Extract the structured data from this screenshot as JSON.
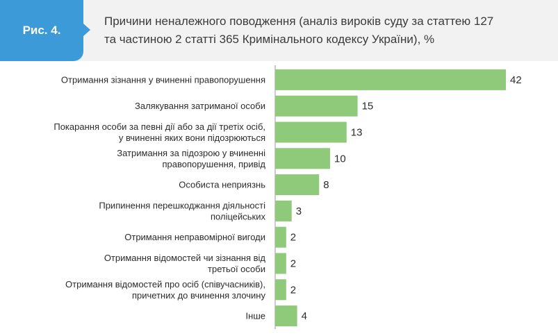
{
  "figure_label": "Рис. 4.",
  "title": "Причини неналежного поводження (аналіз вироків суду за статтею 127\nта частиною 2 статті 365 Кримінального кодексу України), %",
  "colors": {
    "badge": "#3d9ad8",
    "bar": "#8fc97a",
    "header_bg": "#f2f2f2",
    "axis": "#9a9a9a"
  },
  "chart_data": {
    "type": "bar",
    "orientation": "horizontal",
    "title": "Причини неналежного поводження (аналіз вироків суду за статтею 127 та частиною 2 статті 365 Кримінального кодексу України), %",
    "categories": [
      [
        "Отримання зізнання у вчиненні правопорушення"
      ],
      [
        "Залякування затриманої особи"
      ],
      [
        "Покарання особи за певні дії або за дії третіх осіб,",
        "у вчиненні яких вони підозрюються"
      ],
      [
        "Затримання за підозрою у вчиненні",
        "правопорушення, привід"
      ],
      [
        "Особиста неприязнь"
      ],
      [
        "Припинення перешкоджання діяльності",
        "поліцейських"
      ],
      [
        "Отримання неправомірної вигоди"
      ],
      [
        "Отримання відомостей чи зізнання від",
        "третьої особи"
      ],
      [
        "Отримання відомостей про осіб (співучасників),",
        "причетних до вчинення злочину"
      ],
      [
        "Інше"
      ]
    ],
    "values": [
      42,
      15,
      13,
      10,
      8,
      3,
      2,
      2,
      2,
      4
    ],
    "value_labels": [
      "42",
      "15",
      "13",
      "10",
      "8",
      "3",
      "2",
      "2",
      "2",
      "4"
    ],
    "xlabel": "",
    "ylabel": "",
    "xlim": [
      0,
      42
    ],
    "grid": false,
    "legend": "none"
  }
}
